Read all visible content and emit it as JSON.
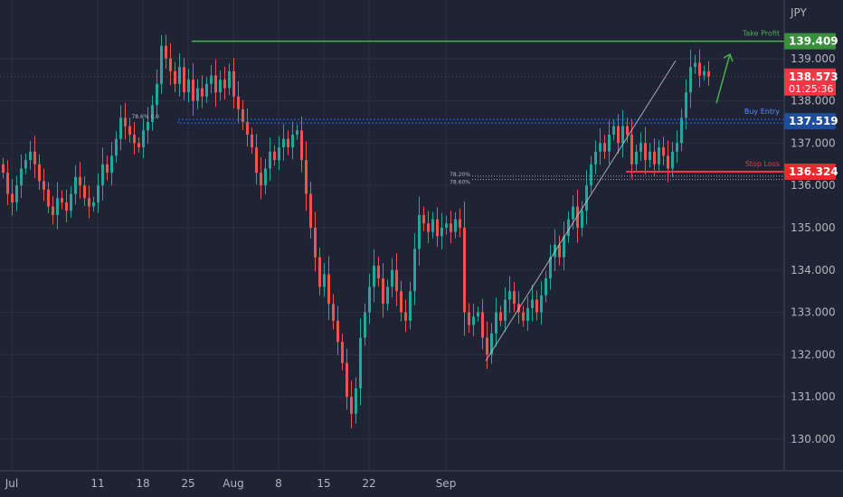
{
  "chart_data": {
    "type": "candlestick",
    "currency_label": "JPY",
    "y_axis": {
      "ylim": [
        129.7,
        139.85
      ],
      "tick_labels": [
        "139.000",
        "138.000",
        "137.000",
        "136.000",
        "135.000",
        "134.000",
        "133.000",
        "132.000",
        "131.000",
        "130.000"
      ],
      "tick_values": [
        139.0,
        138.0,
        137.0,
        136.0,
        135.0,
        134.0,
        133.0,
        132.0,
        131.0,
        130.0
      ]
    },
    "x_axis": {
      "tick_labels": [
        "Jul",
        "11",
        "18",
        "25",
        "Aug",
        "8",
        "15",
        "22",
        "Sep"
      ],
      "tick_bar_index": [
        2,
        21,
        31,
        41,
        51,
        61,
        71,
        81,
        98
      ]
    },
    "price_levels": {
      "take_profit": {
        "label": "Take Profit",
        "value": "139.409",
        "num": 139.409,
        "color": "#4caf50"
      },
      "buy_entry": {
        "label": "Buy Entry",
        "value": "137.519",
        "num": 137.519,
        "color": "#2962ff"
      },
      "stop_loss": {
        "label": "Stop Loss",
        "value": "136.324",
        "num": 136.324,
        "color": "#f23645"
      }
    },
    "current_price": {
      "value": "138.573",
      "num": 138.573,
      "countdown": "01:25:36",
      "color": "#f23645"
    },
    "fib_labels": {
      "fib1": "78.6% 0.0",
      "fib2a": "78.20%",
      "fib2b": "78.60%"
    },
    "candle_colors": {
      "up": "#26a69a",
      "down": "#ef5350"
    },
    "closes": [
      136.3,
      135.8,
      135.6,
      136.0,
      136.4,
      136.6,
      136.8,
      136.5,
      136.1,
      135.9,
      135.5,
      135.3,
      135.7,
      135.6,
      135.4,
      135.8,
      136.2,
      136.0,
      135.7,
      135.5,
      135.6,
      136.0,
      136.5,
      136.3,
      136.7,
      137.1,
      137.6,
      137.4,
      137.2,
      137.0,
      136.9,
      137.3,
      137.5,
      137.9,
      138.4,
      139.3,
      139.0,
      138.7,
      138.4,
      138.8,
      138.2,
      138.5,
      138.0,
      138.3,
      138.1,
      138.4,
      138.6,
      138.2,
      138.5,
      138.3,
      138.7,
      138.1,
      137.8,
      137.5,
      137.2,
      136.9,
      136.3,
      136.0,
      136.4,
      136.8,
      136.6,
      136.9,
      137.1,
      136.9,
      137.2,
      137.3,
      136.6,
      135.8,
      135.0,
      134.3,
      133.6,
      133.9,
      133.2,
      132.8,
      132.3,
      131.8,
      131.0,
      130.6,
      131.2,
      132.4,
      133.0,
      133.6,
      134.1,
      133.8,
      133.2,
      133.6,
      134.0,
      133.5,
      133.0,
      132.8,
      133.5,
      134.5,
      135.3,
      135.1,
      134.9,
      135.2,
      134.8,
      135.0,
      135.1,
      134.9,
      135.2,
      135.0,
      133.0,
      132.7,
      132.9,
      133.0,
      132.4,
      132.0,
      132.5,
      133.0,
      132.8,
      133.3,
      133.5,
      133.2,
      133.0,
      132.8,
      133.1,
      133.3,
      133.0,
      133.4,
      133.8,
      134.3,
      134.6,
      134.3,
      134.8,
      135.2,
      135.5,
      135.0,
      135.4,
      136.0,
      136.5,
      136.8,
      137.0,
      136.8,
      137.2,
      137.4,
      137.0,
      137.4,
      137.2,
      136.5,
      136.8,
      137.0,
      136.6,
      136.8,
      136.5,
      136.9,
      136.7,
      136.4,
      136.8,
      137.0,
      137.6,
      138.2,
      138.8,
      138.9,
      138.6,
      138.7,
      138.573
    ]
  }
}
